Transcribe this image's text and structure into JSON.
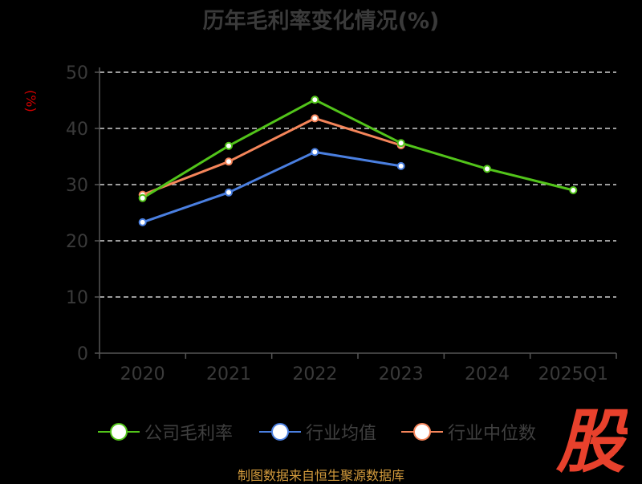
{
  "title": "历年毛利率变化情况(%)",
  "source": "制图数据来自恒生聚源数据库",
  "colors": {
    "company": "#52c41a",
    "industry_avg": "#4a7fe0",
    "industry_median": "#f5855a",
    "unit": "#d40000",
    "grid": "#cfcfcf",
    "axis": "#555555",
    "tick_text": "#3a3a3a",
    "logo": "#e8412c"
  },
  "chart_data": {
    "type": "line",
    "title": "历年毛利率变化情况(%)",
    "ylabel": "(%)",
    "xlabel": "",
    "categories": [
      "2020",
      "2021",
      "2022",
      "2023",
      "2024",
      "2025Q1"
    ],
    "ylim": [
      0,
      50
    ],
    "yticks": [
      0,
      10,
      20,
      30,
      40,
      50
    ],
    "grid": true,
    "legend_position": "bottom",
    "series": [
      {
        "name": "公司毛利率",
        "values": [
          27.6,
          36.9,
          45.1,
          37.4,
          32.8,
          29.0
        ]
      },
      {
        "name": "行业均值",
        "values": [
          23.3,
          28.6,
          35.8,
          33.3,
          null,
          null
        ]
      },
      {
        "name": "行业中位数",
        "values": [
          28.2,
          34.1,
          41.8,
          37.0,
          null,
          null
        ]
      }
    ]
  },
  "legend": [
    {
      "label": "公司毛利率",
      "series": 0
    },
    {
      "label": "行业均值",
      "series": 1
    },
    {
      "label": "行业中位数",
      "series": 2
    }
  ],
  "logo_text": "股"
}
